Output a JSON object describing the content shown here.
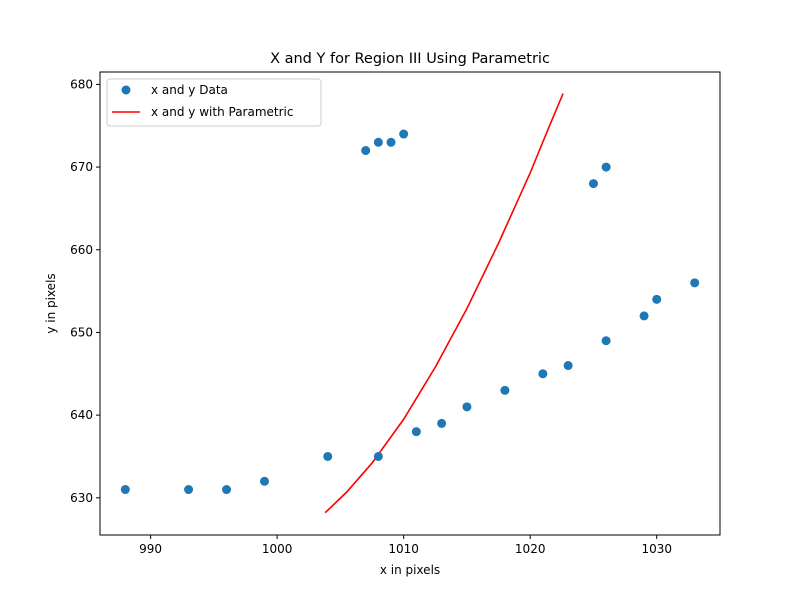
{
  "chart_data": {
    "type": "scatter",
    "title": "X and Y for Region III Using Parametric",
    "xlabel": "x in pixels",
    "ylabel": "y in pixels",
    "xlim": [
      986,
      1035
    ],
    "ylim": [
      625.5,
      681.5
    ],
    "xticks": [
      990,
      1000,
      1010,
      1020,
      1030
    ],
    "yticks": [
      630,
      640,
      650,
      660,
      670,
      680
    ],
    "grid": false,
    "legend": "upper-left",
    "series": [
      {
        "name": "x and y Data",
        "kind": "scatter",
        "color": "#1f77b4",
        "points": [
          [
            988,
            631
          ],
          [
            993,
            631
          ],
          [
            996,
            631
          ],
          [
            999,
            632
          ],
          [
            1004,
            635
          ],
          [
            1007,
            672
          ],
          [
            1008,
            673
          ],
          [
            1009,
            673
          ],
          [
            1010,
            674
          ],
          [
            1008,
            635
          ],
          [
            1011,
            638
          ],
          [
            1013,
            639
          ],
          [
            1015,
            641
          ],
          [
            1018,
            643
          ],
          [
            1021,
            645
          ],
          [
            1023,
            646
          ],
          [
            1025,
            668
          ],
          [
            1026,
            670
          ],
          [
            1026,
            649
          ],
          [
            1029,
            652
          ],
          [
            1030,
            654
          ],
          [
            1033,
            656
          ]
        ]
      },
      {
        "name": "x and y with Parametric",
        "kind": "line",
        "color": "#ff0000",
        "points": [
          [
            1003.8,
            628.2
          ],
          [
            1005.5,
            630.7
          ],
          [
            1007.5,
            634.2
          ],
          [
            1010.0,
            639.5
          ],
          [
            1012.5,
            645.8
          ],
          [
            1015.0,
            652.9
          ],
          [
            1017.5,
            660.8
          ],
          [
            1020.0,
            669.3
          ],
          [
            1021.5,
            674.9
          ],
          [
            1022.6,
            678.9
          ]
        ]
      }
    ]
  }
}
